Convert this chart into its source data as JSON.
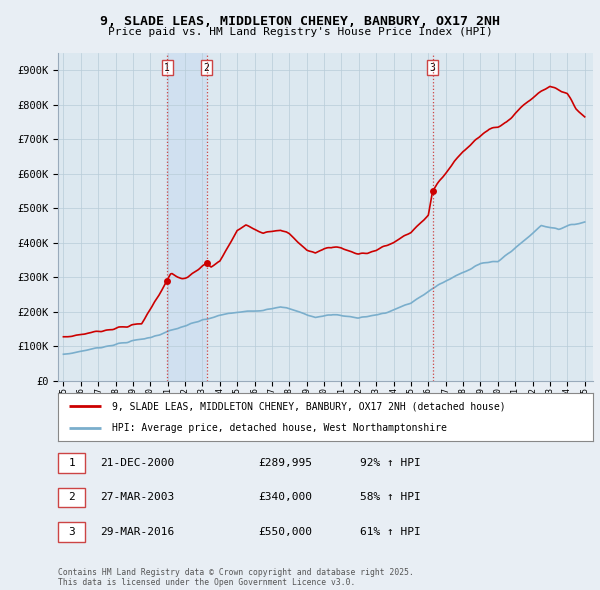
{
  "title": "9, SLADE LEAS, MIDDLETON CHENEY, BANBURY, OX17 2NH",
  "subtitle": "Price paid vs. HM Land Registry's House Price Index (HPI)",
  "background_color": "#e8eef4",
  "plot_background": "#dce8f0",
  "ylim": [
    0,
    950000
  ],
  "yticks": [
    0,
    100000,
    200000,
    300000,
    400000,
    500000,
    600000,
    700000,
    800000,
    900000
  ],
  "ytick_labels": [
    "£0",
    "£100K",
    "£200K",
    "£300K",
    "£400K",
    "£500K",
    "£600K",
    "£700K",
    "£800K",
    "£900K"
  ],
  "sale_dates": [
    2000.97,
    2003.24,
    2016.25
  ],
  "sale_prices": [
    289995,
    340000,
    550000
  ],
  "sale_labels": [
    "1",
    "2",
    "3"
  ],
  "vline_color": "#cc4444",
  "vline_style": ":",
  "shade_color": "#ccddf0",
  "legend_label_red": "9, SLADE LEAS, MIDDLETON CHENEY, BANBURY, OX17 2NH (detached house)",
  "legend_label_blue": "HPI: Average price, detached house, West Northamptonshire",
  "table_rows": [
    [
      "1",
      "21-DEC-2000",
      "£289,995",
      "92% ↑ HPI"
    ],
    [
      "2",
      "27-MAR-2003",
      "£340,000",
      "58% ↑ HPI"
    ],
    [
      "3",
      "29-MAR-2016",
      "£550,000",
      "61% ↑ HPI"
    ]
  ],
  "footer": "Contains HM Land Registry data © Crown copyright and database right 2025.\nThis data is licensed under the Open Government Licence v3.0.",
  "red_color": "#cc0000",
  "blue_color": "#7aaecc",
  "xmin": 1994.7,
  "xmax": 2025.5
}
